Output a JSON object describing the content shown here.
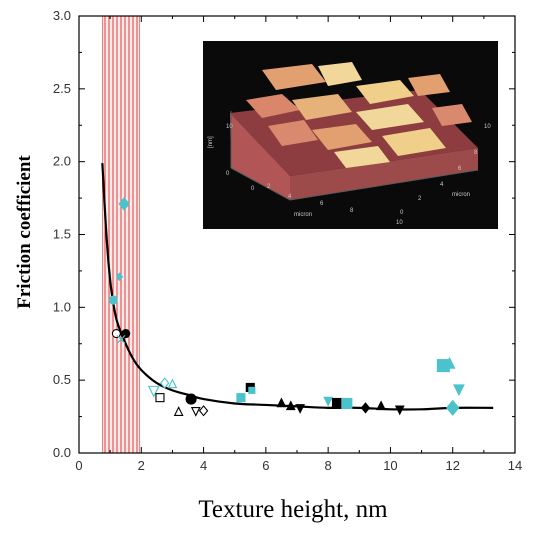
{
  "colors": {
    "background": "#ffffff",
    "axis": "#000000",
    "cyan": "#4cc3cc",
    "hatch": "#e23b3b",
    "inset_bg": "#0a0a0a",
    "surface_base": "#c9605e",
    "surface_mid": "#e2a070",
    "surface_top": "#f1d89a"
  },
  "chart_data": {
    "type": "scatter",
    "xlabel": "Texture height, nm",
    "ylabel": "Friction coefficient",
    "xlim": [
      0,
      14
    ],
    "ylim": [
      0,
      3.0
    ],
    "x_ticks": [
      "0",
      "2",
      "4",
      "6",
      "8",
      "10",
      "12",
      "14"
    ],
    "y_ticks": [
      "0.0",
      "0.5",
      "1.0",
      "1.5",
      "2.0",
      "2.5",
      "3.0"
    ],
    "shaded_region": {
      "x_from": 0.75,
      "x_to": 1.95,
      "pattern": "red vertical hatching"
    },
    "fit_curve": {
      "x": [
        0.75,
        0.85,
        0.95,
        1.05,
        1.2,
        1.4,
        1.7,
        2.0,
        2.5,
        3.0,
        3.5,
        4.0,
        5.0,
        6.0,
        7.0,
        8.0,
        9.0,
        10.0,
        11.0,
        12.0,
        13.3
      ],
      "y": [
        1.99,
        1.6,
        1.3,
        1.1,
        0.92,
        0.8,
        0.66,
        0.57,
        0.48,
        0.43,
        0.4,
        0.37,
        0.34,
        0.33,
        0.32,
        0.31,
        0.31,
        0.3,
        0.3,
        0.31,
        0.31
      ]
    },
    "points": [
      {
        "x": 1.45,
        "y": 1.71,
        "marker": "diamond",
        "color": "cyan",
        "filled": true,
        "size": 5
      },
      {
        "x": 1.3,
        "y": 1.21,
        "marker": "diamond",
        "color": "cyan",
        "filled": true,
        "size": 3
      },
      {
        "x": 1.1,
        "y": 1.05,
        "marker": "circle",
        "color": "cyan",
        "filled": true,
        "size": 4
      },
      {
        "x": 1.2,
        "y": 0.82,
        "marker": "circle",
        "color": "black",
        "filled": false,
        "size": 4
      },
      {
        "x": 1.5,
        "y": 0.82,
        "marker": "circle",
        "color": "black",
        "filled": true,
        "size": 4
      },
      {
        "x": 1.35,
        "y": 0.78,
        "marker": "x",
        "color": "cyan",
        "filled": false,
        "size": 4
      },
      {
        "x": 2.4,
        "y": 0.43,
        "marker": "triangle-down",
        "color": "cyan",
        "filled": false,
        "size": 5
      },
      {
        "x": 2.75,
        "y": 0.48,
        "marker": "diamond",
        "color": "cyan",
        "filled": false,
        "size": 4
      },
      {
        "x": 3.0,
        "y": 0.47,
        "marker": "triangle",
        "color": "cyan",
        "filled": false,
        "size": 4
      },
      {
        "x": 2.6,
        "y": 0.38,
        "marker": "square",
        "color": "black",
        "filled": false,
        "size": 4
      },
      {
        "x": 3.2,
        "y": 0.28,
        "marker": "triangle",
        "color": "black",
        "filled": false,
        "size": 4
      },
      {
        "x": 3.6,
        "y": 0.37,
        "marker": "circle",
        "color": "black",
        "filled": true,
        "size": 5
      },
      {
        "x": 3.75,
        "y": 0.29,
        "marker": "triangle-down",
        "color": "black",
        "filled": false,
        "size": 4
      },
      {
        "x": 4.0,
        "y": 0.29,
        "marker": "diamond",
        "color": "black",
        "filled": false,
        "size": 4
      },
      {
        "x": 5.2,
        "y": 0.38,
        "marker": "square",
        "color": "cyan",
        "filled": true,
        "size": 4
      },
      {
        "x": 5.5,
        "y": 0.45,
        "marker": "square",
        "color": "black",
        "filled": true,
        "size": 4
      },
      {
        "x": 5.55,
        "y": 0.43,
        "marker": "square",
        "color": "cyan",
        "filled": true,
        "size": 3
      },
      {
        "x": 6.5,
        "y": 0.34,
        "marker": "triangle",
        "color": "black",
        "filled": true,
        "size": 4
      },
      {
        "x": 6.8,
        "y": 0.32,
        "marker": "triangle",
        "color": "black",
        "filled": true,
        "size": 4
      },
      {
        "x": 7.1,
        "y": 0.31,
        "marker": "triangle-down",
        "color": "black",
        "filled": true,
        "size": 4
      },
      {
        "x": 8.0,
        "y": 0.36,
        "marker": "triangle-down",
        "color": "cyan",
        "filled": true,
        "size": 4
      },
      {
        "x": 8.3,
        "y": 0.34,
        "marker": "square",
        "color": "black",
        "filled": true,
        "size": 5
      },
      {
        "x": 8.6,
        "y": 0.34,
        "marker": "square",
        "color": "cyan",
        "filled": true,
        "size": 5
      },
      {
        "x": 9.2,
        "y": 0.31,
        "marker": "diamond",
        "color": "black",
        "filled": true,
        "size": 4
      },
      {
        "x": 9.7,
        "y": 0.32,
        "marker": "triangle",
        "color": "black",
        "filled": true,
        "size": 4
      },
      {
        "x": 10.3,
        "y": 0.3,
        "marker": "triangle-down",
        "color": "black",
        "filled": true,
        "size": 4
      },
      {
        "x": 11.7,
        "y": 0.6,
        "marker": "square",
        "color": "cyan",
        "filled": true,
        "size": 6
      },
      {
        "x": 11.9,
        "y": 0.61,
        "marker": "triangle",
        "color": "cyan",
        "filled": true,
        "size": 5
      },
      {
        "x": 12.2,
        "y": 0.44,
        "marker": "triangle-down",
        "color": "cyan",
        "filled": true,
        "size": 5
      },
      {
        "x": 12.0,
        "y": 0.31,
        "marker": "diamond",
        "color": "cyan",
        "filled": true,
        "size": 6
      }
    ],
    "inset": {
      "kind": "AFM 3D surface image",
      "axis_words": [
        "micron",
        "micron",
        "[nm]"
      ],
      "tick_labels": [
        "0",
        "2",
        "4",
        "6",
        "8",
        "10",
        "0",
        "2",
        "4",
        "6",
        "8",
        "10",
        "0",
        "10"
      ]
    }
  }
}
